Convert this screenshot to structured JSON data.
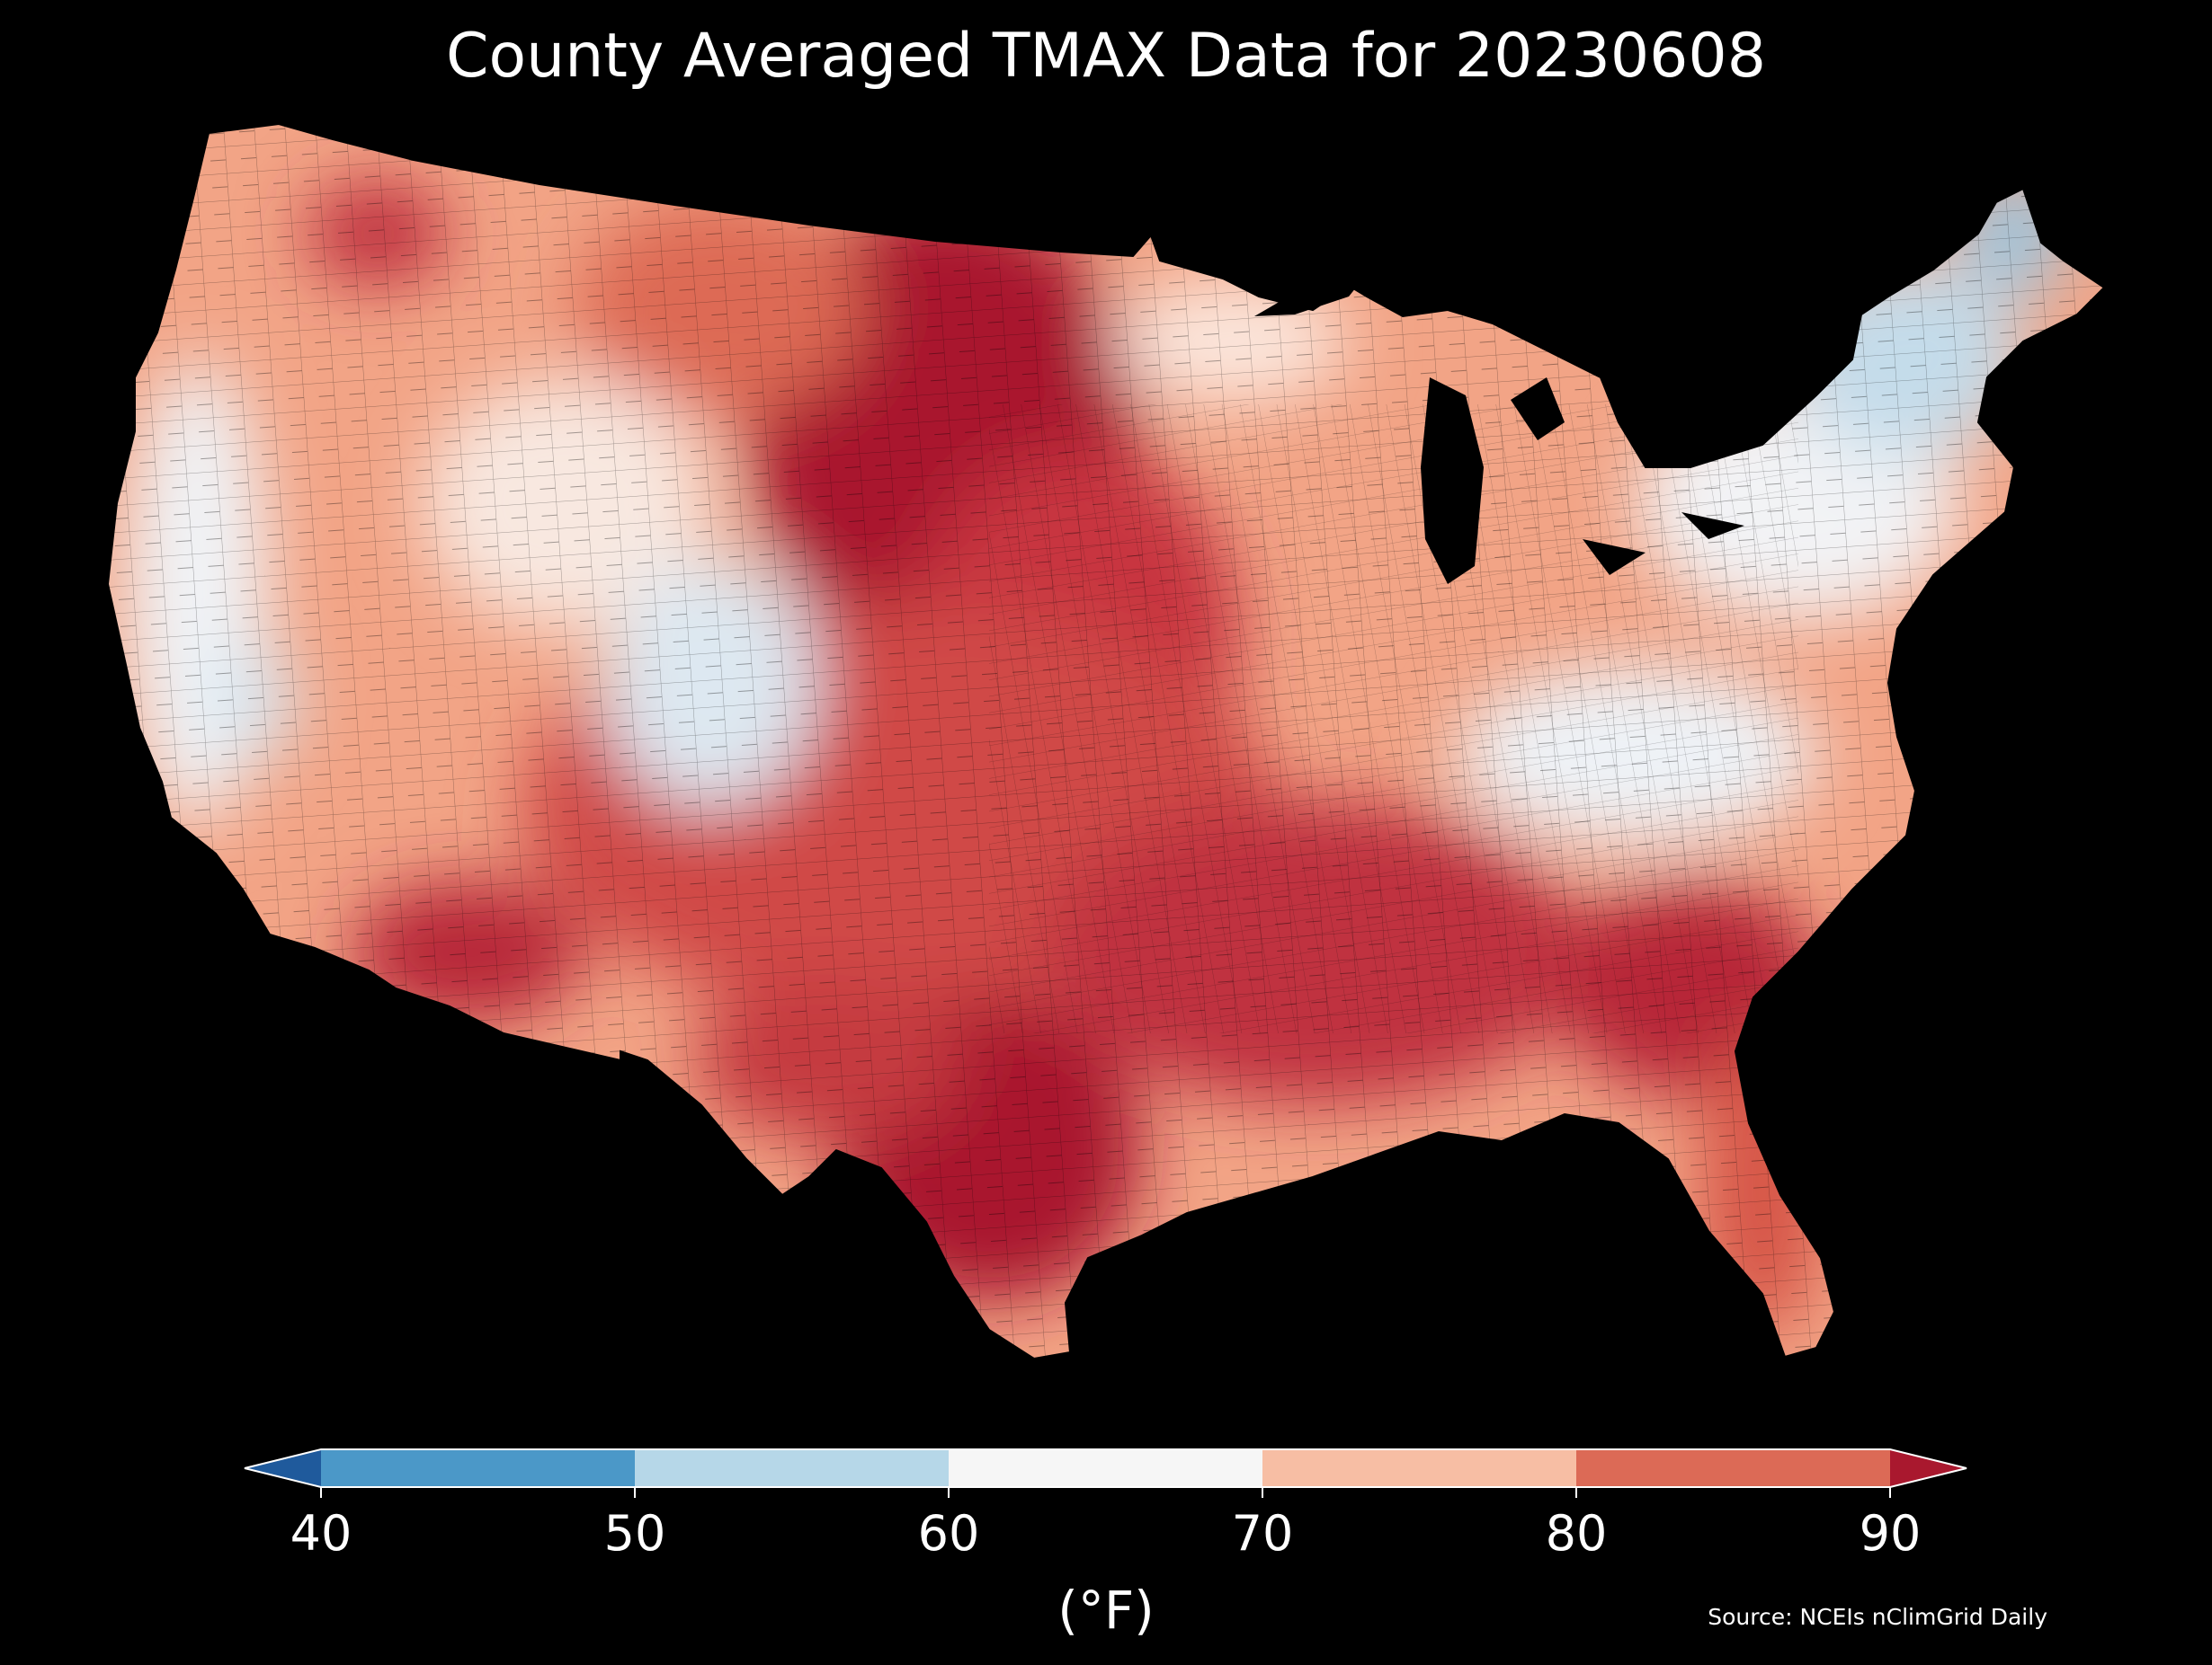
{
  "title": "County Averaged TMAX Data for 20230608",
  "colorbar": {
    "ticks": [
      "40",
      "50",
      "60",
      "70",
      "80",
      "90"
    ],
    "unit": "(°F)",
    "bins": [
      {
        "from": null,
        "to": 40,
        "color": "#1f5a9c"
      },
      {
        "from": 40,
        "to": 50,
        "color": "#4b98c8"
      },
      {
        "from": 50,
        "to": 60,
        "color": "#b6d7e8"
      },
      {
        "from": 60,
        "to": 70,
        "color": "#f6f6f6"
      },
      {
        "from": 70,
        "to": 80,
        "color": "#f7bea4"
      },
      {
        "from": 80,
        "to": 90,
        "color": "#dc6a56"
      },
      {
        "from": 90,
        "to": null,
        "color": "#a9182e"
      }
    ],
    "extend": "both"
  },
  "map": {
    "region": "contiguous United States",
    "unit_of_shading": "county",
    "background": "#000000",
    "county_border_color": "#000000",
    "hot_core_colors": [
      "#a9182e",
      "#c83640"
    ],
    "cool_core_colors": [
      "#b6d7e8",
      "#9cc6df"
    ]
  },
  "source": "Source: NCEIs nClimGrid Daily"
}
